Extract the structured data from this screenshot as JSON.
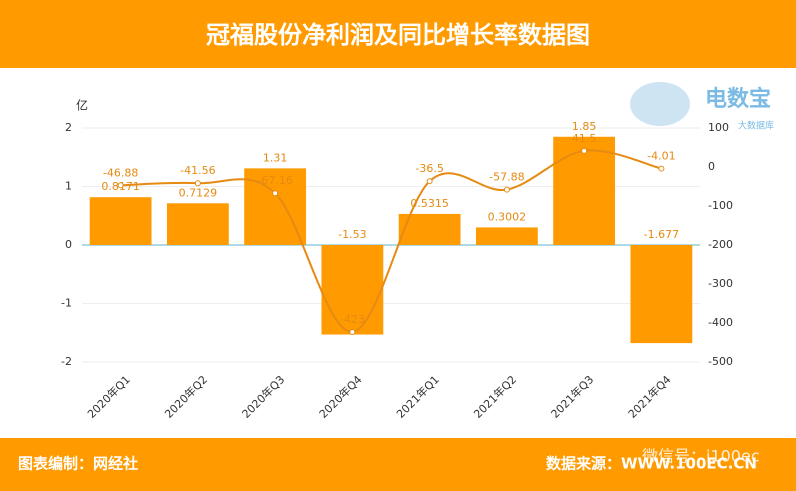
{
  "chart_data": {
    "type": "bar",
    "title": "冠福股份净利润及同比增长率数据图",
    "y_unit": "亿",
    "categories": [
      "2020年Q1",
      "2020年Q2",
      "2020年Q3",
      "2020年Q4",
      "2021年Q1",
      "2021年Q2",
      "2021年Q3",
      "2021年Q4"
    ],
    "series": [
      {
        "type": "bar",
        "color": "#ff9a00",
        "values": [
          0.8171,
          0.7129,
          1.31,
          -1.53,
          0.5315,
          0.3002,
          1.85,
          -1.677
        ]
      },
      {
        "type": "line",
        "axis": "y2",
        "color": "#e58a12",
        "values": [
          -46.88,
          -41.56,
          -67.16,
          -423,
          -36.5,
          -57.88,
          41.5,
          -4.01
        ]
      }
    ],
    "ylim": [
      -2,
      2
    ],
    "yticks": [
      -2,
      -1,
      0,
      1,
      2
    ],
    "y2lim": [
      -500,
      100
    ],
    "y2ticks": [
      -500,
      -400,
      -300,
      -200,
      -100,
      0,
      100
    ],
    "grid": true
  },
  "footer": {
    "left": "图表编制：网经社",
    "right": "数据来源：WWW.100EC.CN"
  },
  "watermark": {
    "brand": "电数宝",
    "sub": "大数据库",
    "wechat": "微信号：i100ec"
  }
}
